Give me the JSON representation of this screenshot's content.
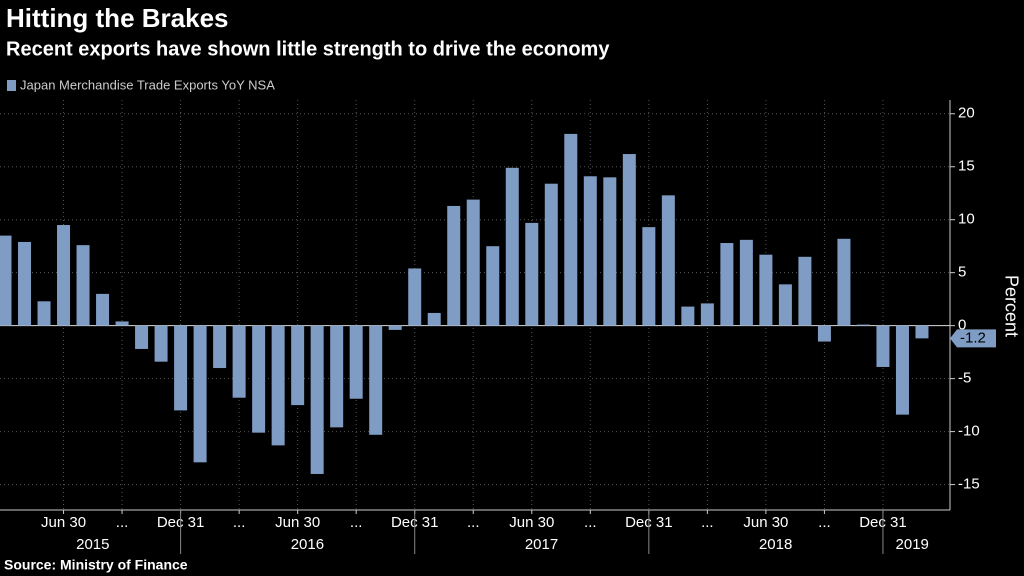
{
  "chart_data": {
    "type": "bar",
    "title": "Hitting the Brakes",
    "subtitle": "Recent exports have shown little strength to drive the economy",
    "y_label": "Percent",
    "source": "Source: Ministry of Finance",
    "categories": [
      null,
      null,
      null,
      "Jun 30",
      null,
      null,
      "...",
      null,
      null,
      "Dec 31",
      null,
      null,
      "...",
      null,
      null,
      "Jun 30",
      null,
      null,
      "...",
      null,
      null,
      "Dec 31",
      null,
      null,
      "...",
      null,
      null,
      "Jun 30",
      null,
      null,
      "...",
      null,
      null,
      "Dec 31",
      null,
      null,
      "...",
      null,
      null,
      "Jun 30",
      null,
      null,
      "...",
      null,
      null,
      "Dec 31",
      null,
      null
    ],
    "x_groups": [
      {
        "label": "2015",
        "size": 10
      },
      {
        "label": "2016",
        "size": 12
      },
      {
        "label": "2017",
        "size": 12
      },
      {
        "label": "2018",
        "size": 12
      },
      {
        "label": "2019",
        "size": 2
      }
    ],
    "series": [
      {
        "name": "Japan Merchandise Trade Exports YoY NSA",
        "color": "#7f9cc4",
        "values": [
          8.5,
          7.9,
          2.3,
          9.5,
          7.6,
          3.0,
          0.4,
          -2.2,
          -3.4,
          -8.0,
          -12.9,
          -4.0,
          -6.8,
          -10.1,
          -11.3,
          -7.5,
          -14.0,
          -9.6,
          -6.9,
          -10.3,
          -0.4,
          5.4,
          1.2,
          11.3,
          11.9,
          7.5,
          14.9,
          9.7,
          13.4,
          18.1,
          14.1,
          14.0,
          16.2,
          9.3,
          12.3,
          1.8,
          2.1,
          7.8,
          8.1,
          6.7,
          3.9,
          6.5,
          -1.5,
          8.2,
          0.1,
          -3.9,
          -8.4,
          -1.2
        ]
      }
    ],
    "ylim": [
      -17.4,
      21.3
    ],
    "yticks": [
      20,
      15,
      10,
      5,
      0,
      -5,
      -10,
      -15
    ],
    "grid": true
  }
}
